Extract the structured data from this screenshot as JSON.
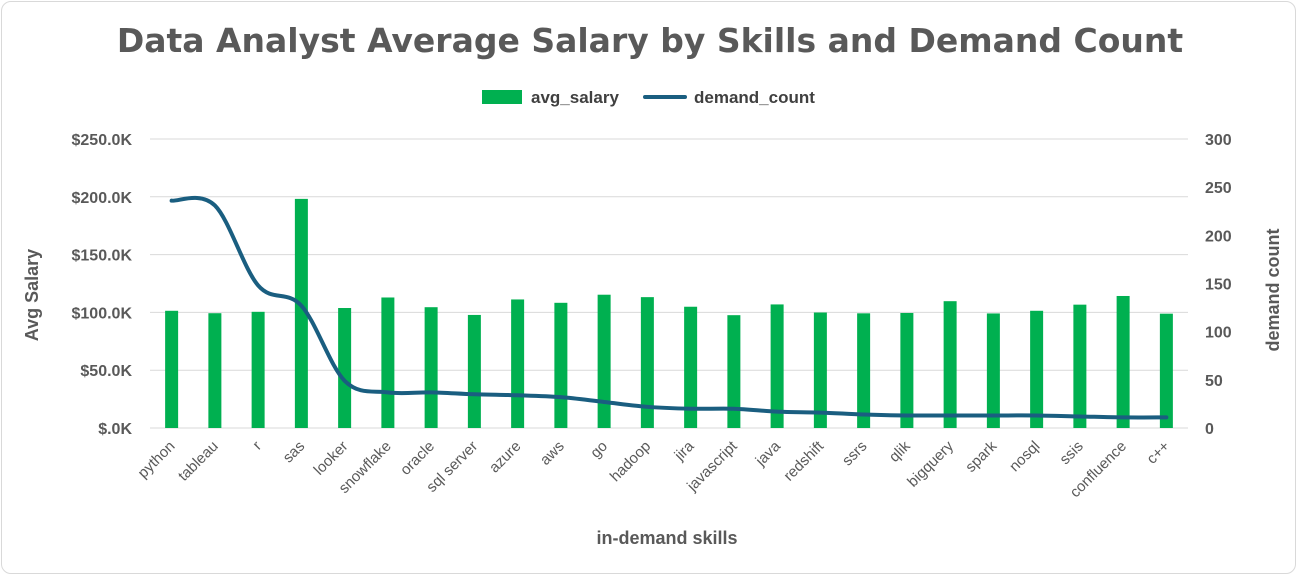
{
  "chart_data": {
    "type": "bar",
    "title": "Data Analyst Average Salary by Skills and Demand Count",
    "xlabel": "in-demand skills",
    "ylabel": "Avg Salary",
    "y2label": "demand count",
    "categories": [
      "python",
      "tableau",
      "r",
      "sas",
      "looker",
      "snowflake",
      "oracle",
      "sql server",
      "azure",
      "aws",
      "go",
      "hadoop",
      "jira",
      "javascript",
      "java",
      "redshift",
      "ssrs",
      "qlik",
      "bigquery",
      "spark",
      "nosql",
      "ssis",
      "confluence",
      "c++"
    ],
    "series": [
      {
        "name": "avg_salary",
        "type": "bar",
        "axis": "left",
        "color": "#00b050",
        "values": [
          101400,
          99300,
          100500,
          198200,
          103800,
          112900,
          104500,
          97800,
          111200,
          108300,
          115300,
          113200,
          104900,
          97600,
          106900,
          99900,
          99200,
          99500,
          109700,
          99100,
          101400,
          106700,
          114200,
          98900
        ]
      },
      {
        "name": "demand_count",
        "type": "line",
        "axis": "right",
        "color": "#1a5e80",
        "values": [
          236,
          231,
          148,
          127,
          49,
          37,
          37,
          35,
          34,
          32,
          27,
          22,
          20,
          20,
          17,
          16,
          14,
          13,
          13,
          13,
          13,
          12,
          11,
          11
        ]
      }
    ],
    "ylim": [
      0,
      250000
    ],
    "y2lim": [
      0,
      300
    ],
    "y_ticks": [
      "$.0K",
      "$50.0K",
      "$100.0K",
      "$150.0K",
      "$200.0K",
      "$250.0K"
    ],
    "y2_ticks": [
      "0",
      "50",
      "100",
      "150",
      "200",
      "250",
      "300"
    ],
    "legend_position": "top",
    "grid": true
  }
}
